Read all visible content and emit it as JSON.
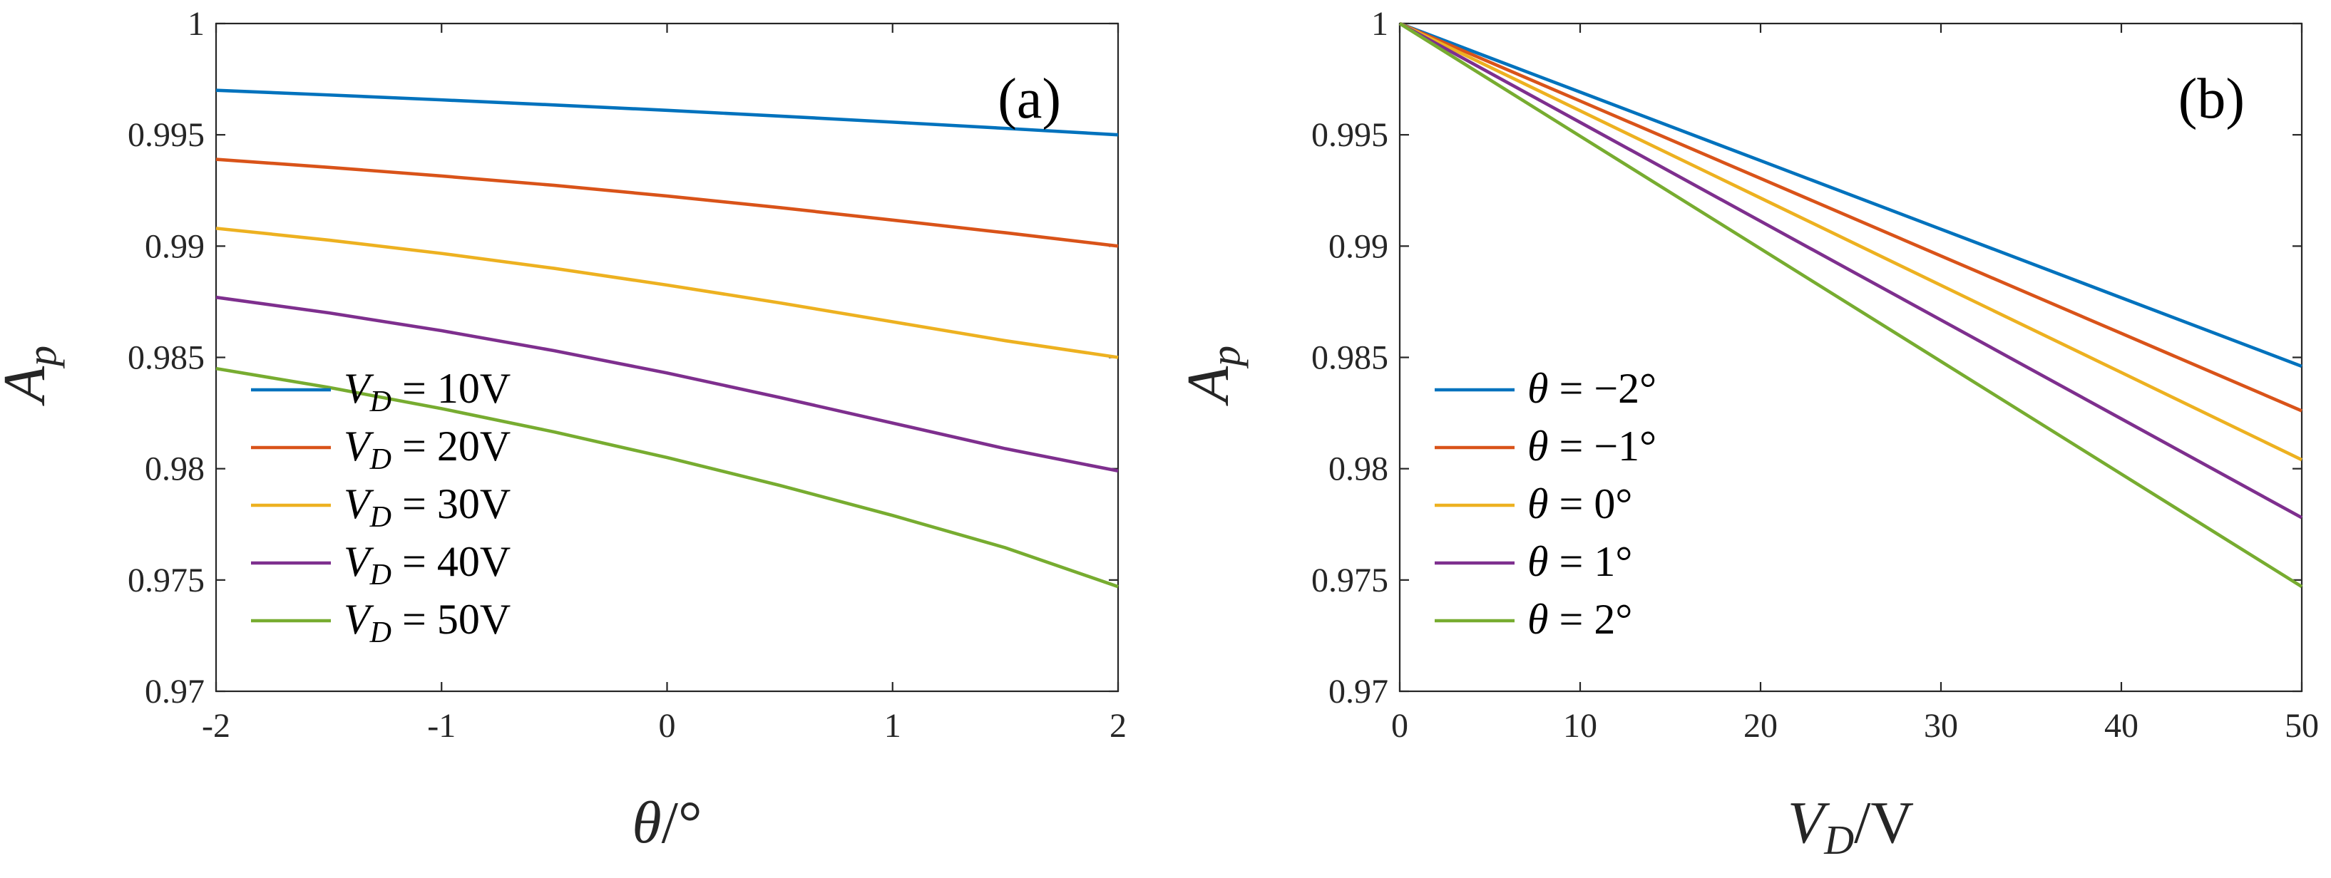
{
  "chart_data": [
    {
      "type": "line",
      "panel_label": "(a)",
      "xlabel": "θ/°",
      "ylabel": "A_p",
      "xlim": [
        -2,
        2
      ],
      "ylim": [
        0.97,
        1
      ],
      "xticks": [
        -2,
        -1,
        0,
        1,
        2
      ],
      "xtick_labels": [
        "-2",
        "-1",
        "0",
        "1",
        "2"
      ],
      "yticks": [
        0.97,
        0.975,
        0.98,
        0.985,
        0.99,
        0.995,
        1
      ],
      "ytick_labels": [
        "0.97",
        "0.975",
        "0.98",
        "0.985",
        "0.99",
        "0.995",
        "1"
      ],
      "legend_position": "bottom-left",
      "series": [
        {
          "name": "V_D = 10V",
          "var": "V",
          "sub": "D",
          "eq": " = 10V",
          "color": "#0072BD",
          "x": [
            -2,
            -1.5,
            -1,
            -0.5,
            0,
            0.5,
            1,
            1.5,
            2
          ],
          "y": [
            0.997,
            0.99679,
            0.99657,
            0.99634,
            0.9961,
            0.99584,
            0.99557,
            0.99529,
            0.995
          ]
        },
        {
          "name": "V_D = 20V",
          "var": "V",
          "sub": "D",
          "eq": " = 20V",
          "color": "#D95319",
          "x": [
            -2,
            -1.5,
            -1,
            -0.5,
            0,
            0.5,
            1,
            1.5,
            2
          ],
          "y": [
            0.9939,
            0.99354,
            0.99315,
            0.99273,
            0.99225,
            0.99173,
            0.99117,
            0.9906,
            0.99
          ]
        },
        {
          "name": "V_D = 30V",
          "var": "V",
          "sub": "D",
          "eq": " = 30V",
          "color": "#EDB120",
          "x": [
            -2,
            -1.5,
            -1,
            -0.5,
            0,
            0.5,
            1,
            1.5,
            2
          ],
          "y": [
            0.9908,
            0.99027,
            0.98967,
            0.989,
            0.98825,
            0.98745,
            0.9866,
            0.98575,
            0.985
          ]
        },
        {
          "name": "V_D = 40V",
          "var": "V",
          "sub": "D",
          "eq": " = 40V",
          "color": "#7E2F8E",
          "x": [
            -2,
            -1.5,
            -1,
            -0.5,
            0,
            0.5,
            1,
            1.5,
            2
          ],
          "y": [
            0.9877,
            0.987,
            0.9862,
            0.9853,
            0.9843,
            0.9832,
            0.98205,
            0.9809,
            0.9799
          ]
        },
        {
          "name": "V_D = 50V",
          "var": "V",
          "sub": "D",
          "eq": " = 50V",
          "color": "#77AC30",
          "x": [
            -2,
            -1.5,
            -1,
            -0.5,
            0,
            0.5,
            1,
            1.5,
            2
          ],
          "y": [
            0.9845,
            0.98365,
            0.9827,
            0.98165,
            0.9805,
            0.97925,
            0.9779,
            0.97645,
            0.9747
          ]
        }
      ]
    },
    {
      "type": "line",
      "panel_label": "(b)",
      "xlabel": "V_D/V",
      "ylabel": "A_p",
      "xlim": [
        0,
        50
      ],
      "ylim": [
        0.97,
        1
      ],
      "xticks": [
        0,
        10,
        20,
        30,
        40,
        50
      ],
      "xtick_labels": [
        "0",
        "10",
        "20",
        "30",
        "40",
        "50"
      ],
      "yticks": [
        0.97,
        0.975,
        0.98,
        0.985,
        0.99,
        0.995,
        1
      ],
      "ytick_labels": [
        "0.97",
        "0.975",
        "0.98",
        "0.985",
        "0.99",
        "0.995",
        "1"
      ],
      "legend_position": "bottom-left",
      "series": [
        {
          "name": "θ = −2°",
          "var": "θ",
          "sub": "",
          "eq": " = −2°",
          "color": "#0072BD",
          "x": [
            0,
            10,
            20,
            30,
            40,
            50
          ],
          "y": [
            1,
            0.99692,
            0.99384,
            0.99076,
            0.98768,
            0.9846
          ]
        },
        {
          "name": "θ = −1°",
          "var": "θ",
          "sub": "",
          "eq": " = −1°",
          "color": "#D95319",
          "x": [
            0,
            10,
            20,
            30,
            40,
            50
          ],
          "y": [
            1,
            0.99652,
            0.99304,
            0.98956,
            0.98608,
            0.9826
          ]
        },
        {
          "name": "θ = 0°",
          "var": "θ",
          "sub": "",
          "eq": " = 0°",
          "color": "#EDB120",
          "x": [
            0,
            10,
            20,
            30,
            40,
            50
          ],
          "y": [
            1,
            0.99608,
            0.99216,
            0.98824,
            0.98432,
            0.9804
          ]
        },
        {
          "name": "θ = 1°",
          "var": "θ",
          "sub": "",
          "eq": " = 1°",
          "color": "#7E2F8E",
          "x": [
            0,
            10,
            20,
            30,
            40,
            50
          ],
          "y": [
            1,
            0.99556,
            0.99112,
            0.98668,
            0.98224,
            0.9778
          ]
        },
        {
          "name": "θ = 2°",
          "var": "θ",
          "sub": "",
          "eq": " = 2°",
          "color": "#77AC30",
          "x": [
            0,
            10,
            20,
            30,
            40,
            50
          ],
          "y": [
            1,
            0.99494,
            0.98988,
            0.98482,
            0.97976,
            0.9747
          ]
        }
      ]
    }
  ]
}
